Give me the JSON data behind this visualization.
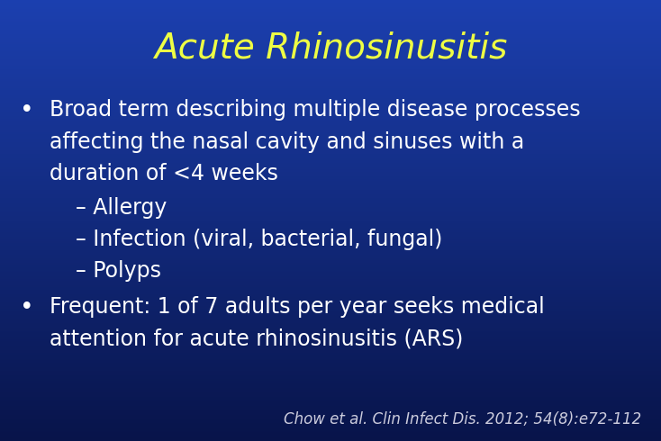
{
  "title": "Acute Rhinosinusitis",
  "title_color": "#EEFF44",
  "title_fontsize": 28,
  "bg_color_top": "#1c3faa",
  "bg_color_mid": "#1a3aaa",
  "bg_color_bottom": "#081444",
  "bullet1_line1": "Broad term describing multiple disease processes",
  "bullet1_line2": "affecting the nasal cavity and sinuses with a",
  "bullet1_line3": "duration of <4 weeks",
  "sub1": "– Allergy",
  "sub2": "– Infection (viral, bacterial, fungal)",
  "sub3": "– Polyps",
  "bullet2_line1": "Frequent: 1 of 7 adults per year seeks medical",
  "bullet2_line2": "attention for acute rhinosinusitis (ARS)",
  "text_color": "#ffffff",
  "citation": "Chow et al. Clin Infect Dis. 2012; 54(8):e72-112",
  "citation_color": "#ccccdd",
  "bullet_color": "#ffffff",
  "body_fontsize": 17,
  "sub_fontsize": 17,
  "citation_fontsize": 12
}
